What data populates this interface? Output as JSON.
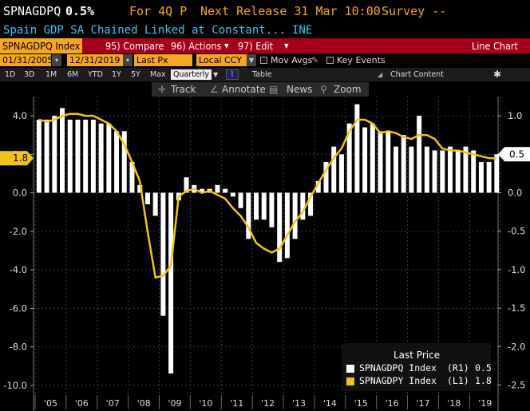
{
  "header": {
    "ticker": "SPNAGDPQ",
    "value": "0.5%",
    "period": "For 4Q P",
    "next_release": "Next Release 31 Mar 10:00",
    "survey": "Survey --",
    "description": "Spain GDP SA Chained Linked at Constant...",
    "source": "INE"
  },
  "menubar": {
    "security": "SPNAGDPQ Index",
    "compare": "95) Compare",
    "actions": "96) Actions",
    "edit": "97) Edit",
    "chart_type": "Line Chart"
  },
  "controls": {
    "start_date": "01/31/2005",
    "end_date": "12/31/2019",
    "field": "Last Px",
    "currency": "Local CCY",
    "mov_avgs": "Mov Avgs",
    "key_events": "Key Events"
  },
  "ranges": {
    "items": [
      "1D",
      "3D",
      "1M",
      "6M",
      "YTD",
      "1Y",
      "5Y",
      "Max"
    ],
    "frequency": "Quarterly",
    "table": "Table",
    "chart_content": "Chart Content"
  },
  "toolbar": {
    "track": "Track",
    "annotate": "Annotate",
    "news": "News",
    "zoom": "Zoom"
  },
  "colors": {
    "bars": "#ffffff",
    "line": "#f2c417",
    "accent": "#f5a623",
    "menubar": "#a7001a",
    "header_blue": "#3cc8f0"
  },
  "chart_data": {
    "type": "bar",
    "x": [
      "2005Q1",
      "2005Q2",
      "2005Q3",
      "2005Q4",
      "2006Q1",
      "2006Q2",
      "2006Q3",
      "2006Q4",
      "2007Q1",
      "2007Q2",
      "2007Q3",
      "2007Q4",
      "2008Q1",
      "2008Q2",
      "2008Q3",
      "2008Q4",
      "2009Q1",
      "2009Q2",
      "2009Q3",
      "2009Q4",
      "2010Q1",
      "2010Q2",
      "2010Q3",
      "2010Q4",
      "2011Q1",
      "2011Q2",
      "2011Q3",
      "2011Q4",
      "2012Q1",
      "2012Q2",
      "2012Q3",
      "2012Q4",
      "2013Q1",
      "2013Q2",
      "2013Q3",
      "2013Q4",
      "2014Q1",
      "2014Q2",
      "2014Q3",
      "2014Q4",
      "2015Q1",
      "2015Q2",
      "2015Q3",
      "2015Q4",
      "2016Q1",
      "2016Q2",
      "2016Q3",
      "2016Q4",
      "2017Q1",
      "2017Q2",
      "2017Q3",
      "2017Q4",
      "2018Q1",
      "2018Q2",
      "2018Q3",
      "2018Q4",
      "2019Q1",
      "2019Q2",
      "2019Q3",
      "2019Q4"
    ],
    "series": [
      {
        "name": "SPNAGDPQ Index (R1)",
        "axis": "right",
        "values": [
          0.95,
          0.95,
          1.0,
          1.1,
          0.95,
          0.95,
          0.95,
          0.95,
          0.9,
          0.9,
          0.8,
          0.8,
          0.4,
          0.1,
          -0.15,
          -0.3,
          -1.6,
          -2.35,
          -0.1,
          0.2,
          0.1,
          0.05,
          0.05,
          0.1,
          0.05,
          -0.05,
          -0.2,
          -0.6,
          -0.35,
          -0.35,
          -0.45,
          -0.9,
          -0.85,
          -0.6,
          -0.35,
          -0.3,
          0.15,
          0.4,
          0.6,
          0.5,
          0.9,
          1.15,
          0.85,
          0.9,
          0.8,
          0.8,
          0.6,
          0.75,
          0.6,
          1.0,
          0.6,
          0.55,
          0.55,
          0.6,
          0.55,
          0.6,
          0.55,
          0.4,
          0.4,
          0.5
        ]
      },
      {
        "name": "SPNAGDPY Index (L1)",
        "axis": "left",
        "values": [
          3.8,
          3.7,
          3.8,
          4.0,
          4.1,
          4.1,
          4.0,
          4.0,
          3.8,
          3.6,
          3.2,
          2.5,
          1.6,
          0.6,
          -2.0,
          -4.4,
          -4.3,
          -3.8,
          -0.2,
          0.1,
          0.2,
          0.0,
          0.1,
          -0.1,
          -0.3,
          -0.8,
          -1.2,
          -1.8,
          -2.6,
          -2.9,
          -3.1,
          -2.9,
          -2.2,
          -1.5,
          -1.0,
          -0.2,
          0.5,
          1.2,
          1.8,
          2.3,
          3.2,
          3.8,
          3.8,
          3.6,
          3.1,
          3.2,
          3.1,
          2.9,
          2.8,
          3.0,
          3.0,
          2.8,
          2.3,
          2.2,
          2.2,
          2.1,
          2.0,
          1.9,
          1.8,
          1.8
        ]
      }
    ],
    "left_axis": {
      "ylim": [
        -10.5,
        5.0
      ],
      "ticks": [
        "4.0",
        "2.0",
        "0.0",
        "-2.0",
        "-4.0",
        "-6.0",
        "-8.0",
        "-10.0"
      ]
    },
    "right_axis": {
      "ylim": [
        -2.63,
        1.25
      ],
      "ticks": [
        "1.0",
        "0.5",
        "0.0",
        "-0.5",
        "-1.0",
        "-1.5",
        "-2.0",
        "-2.5"
      ]
    },
    "x_tick_labels": [
      "'05",
      "'06",
      "'07",
      "'08",
      "'09",
      "'10",
      "'11",
      "'12",
      "'13",
      "'14",
      "'15",
      "'16",
      "'17",
      "'18",
      "'19"
    ],
    "left_last_label": "1.8",
    "right_last_label": "0.5",
    "grid": true,
    "legend": {
      "title": "Last Price",
      "position": "bottom-right",
      "entries": [
        {
          "label": "SPNAGDPQ Index",
          "axis": "(R1)",
          "value": "0.5",
          "color": "#ffffff"
        },
        {
          "label": "SPNAGDPY Index",
          "axis": "(L1)",
          "value": "1.8",
          "color": "#f2c417"
        }
      ]
    }
  }
}
